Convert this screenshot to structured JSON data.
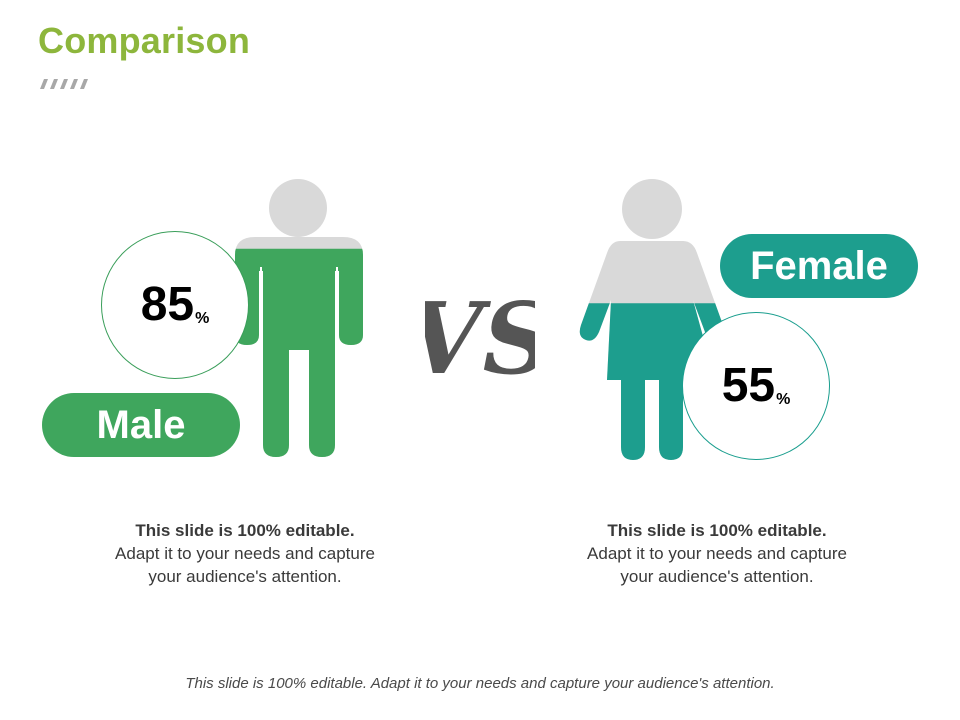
{
  "slide": {
    "title": "Comparison",
    "vs_text": "VS",
    "footer": "This slide is 100% editable. Adapt it to your needs and capture your audience's attention."
  },
  "male": {
    "label": "Male",
    "percent_value": "85",
    "percent_sign": "%",
    "fill_fraction": 0.85,
    "color": "#3fa65d",
    "description_bold": "This slide is 100% editable.",
    "description": "Adapt it to your needs and capture your audience's attention."
  },
  "female": {
    "label": "Female",
    "percent_value": "55",
    "percent_sign": "%",
    "fill_fraction": 0.55,
    "color": "#1d9e8e",
    "description_bold": "This slide is 100% editable.",
    "description": "Adapt it to your needs and capture your audience's attention."
  },
  "colors": {
    "title": "#8db63c",
    "figure_empty": "#d9d9d9",
    "vs": "#555555"
  },
  "icons": [
    "male-person-icon",
    "female-person-icon",
    "title-stripes-icon"
  ]
}
